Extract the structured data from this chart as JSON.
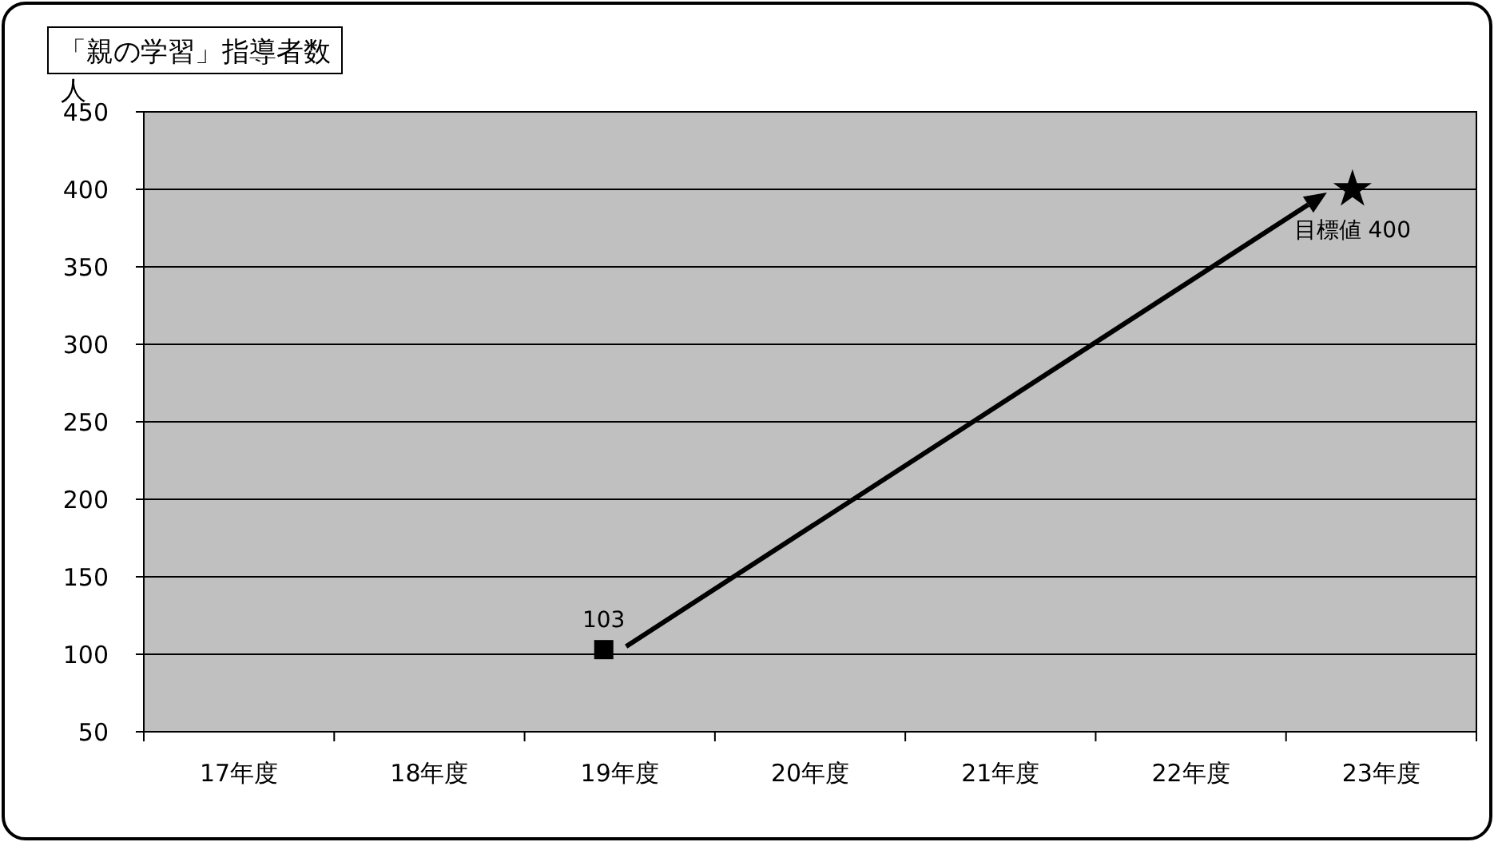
{
  "chart_data": {
    "type": "scatter",
    "title": "「親の学習」指導者数",
    "ylabel": "人",
    "categories": [
      "17年度",
      "18年度",
      "19年度",
      "20年度",
      "21年度",
      "22年度",
      "23年度"
    ],
    "ylim": [
      50,
      450
    ],
    "yticks": [
      50,
      100,
      150,
      200,
      250,
      300,
      350,
      400,
      450
    ],
    "grid": "y",
    "series": [
      {
        "color": "#000000",
        "marker": "square",
        "values": [
          null,
          null,
          103,
          null,
          null,
          null,
          null
        ],
        "value_labels": [
          null,
          null,
          "103",
          null,
          null,
          null,
          null
        ]
      },
      {
        "color": "#000000",
        "marker": "star",
        "values": [
          null,
          null,
          null,
          null,
          null,
          null,
          400
        ],
        "value_labels": [
          null,
          null,
          null,
          null,
          null,
          null,
          "目標値 400"
        ]
      }
    ]
  }
}
